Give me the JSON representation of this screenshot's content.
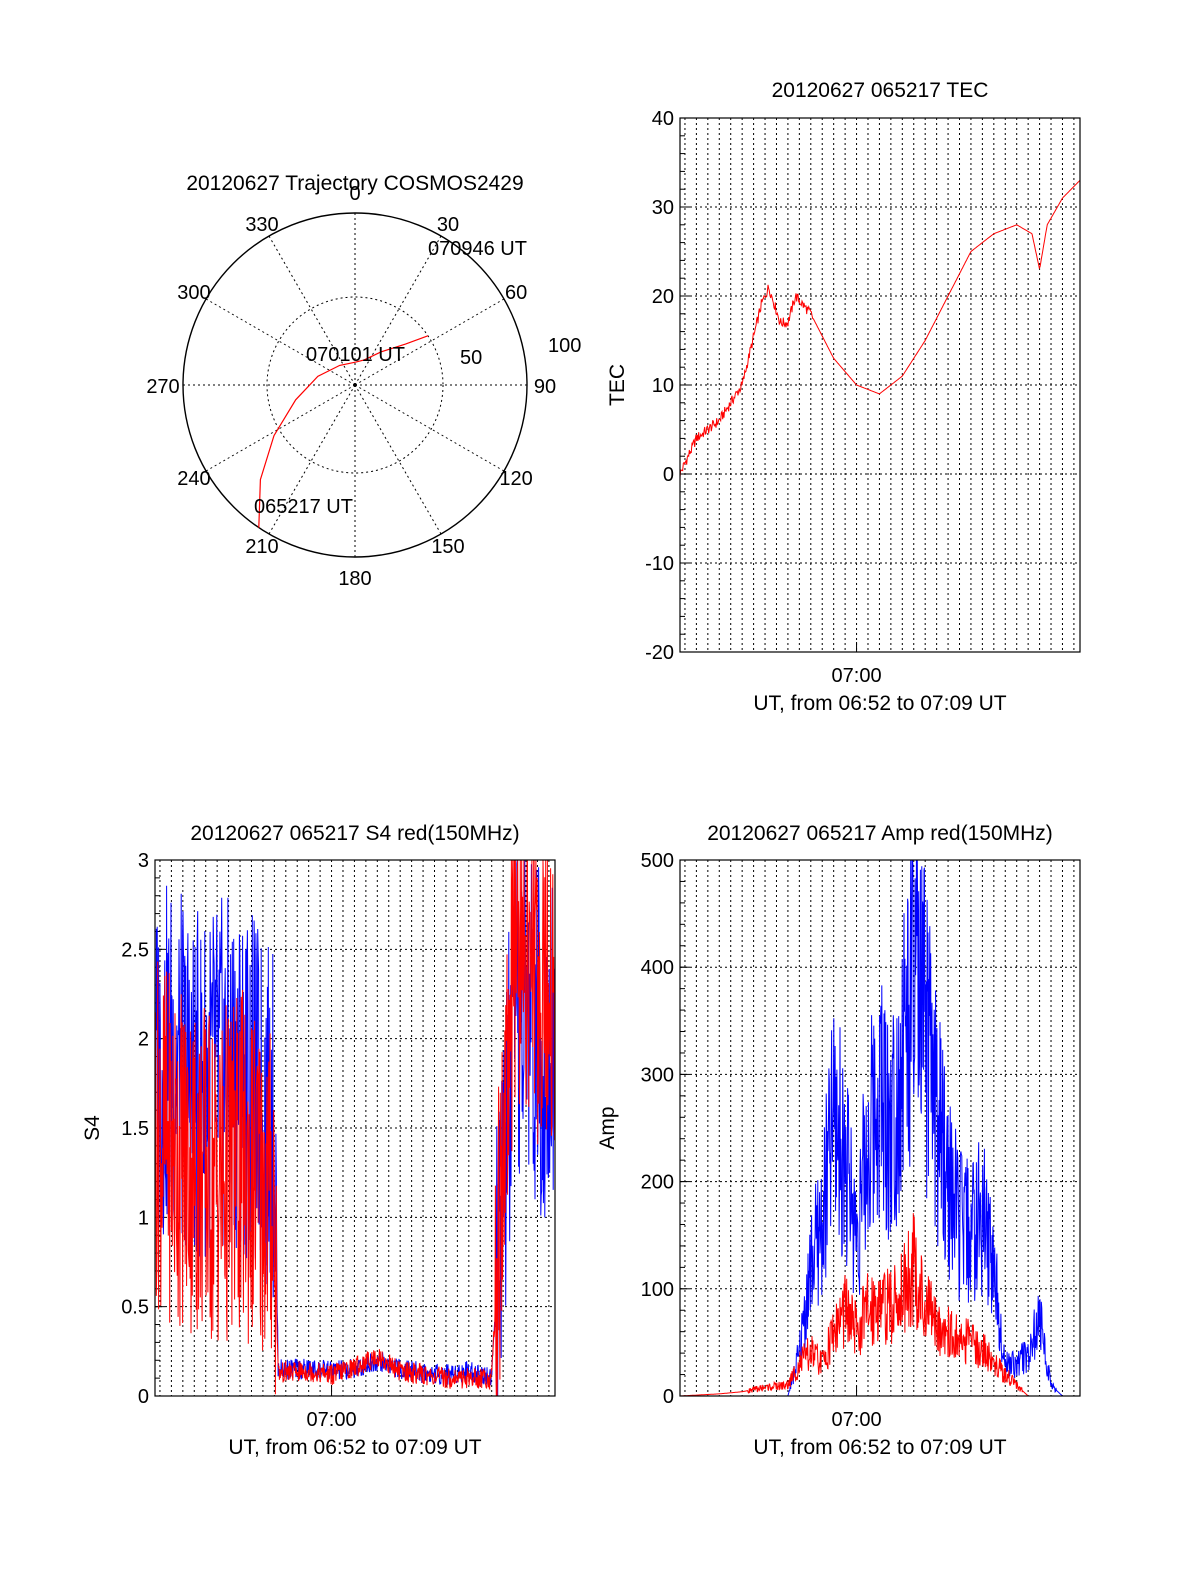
{
  "chart_data": [
    {
      "type": "polar",
      "title": "20120627 Trajectory COSMOS2429",
      "azimuth_labels": [
        "0",
        "30",
        "60",
        "90",
        "120",
        "150",
        "180",
        "210",
        "240",
        "270",
        "300",
        "330"
      ],
      "ring_labels": [
        "50",
        "100"
      ],
      "trajectory_color": "#ff0000",
      "trajectory": [
        [
          214,
          90
        ],
        [
          225,
          70
        ],
        [
          238,
          50
        ],
        [
          256,
          32
        ],
        [
          283,
          20
        ],
        [
          322,
          13
        ],
        [
          2,
          12
        ],
        [
          20,
          14
        ],
        [
          38,
          22
        ],
        [
          51,
          34
        ],
        [
          56,
          46
        ]
      ],
      "annotations": [
        "070946 UT",
        "070101 UT",
        "065217 UT"
      ]
    },
    {
      "type": "line",
      "title": "20120627 065217 TEC",
      "ylabel": "TEC",
      "xlabel": "UT, from 06:52 to 07:09 UT",
      "xticks": [
        "07:00"
      ],
      "xlim": [
        "06:52:17",
        "07:09:46"
      ],
      "ylim": [
        -20,
        40
      ],
      "yticks": [
        "-20",
        "-10",
        "0",
        "10",
        "20",
        "30",
        "40"
      ],
      "grid": true,
      "series": [
        {
          "color": "#ff0000",
          "x": [
            "06:52:17",
            "06:53:00",
            "06:54:00",
            "06:55:00",
            "06:55:50",
            "06:56:10",
            "06:56:40",
            "06:57:00",
            "06:57:20",
            "06:58:00",
            "06:59:00",
            "07:00:00",
            "07:01:00",
            "07:02:00",
            "07:03:00",
            "07:04:00",
            "07:05:00",
            "07:06:00",
            "07:07:00",
            "07:07:40",
            "07:08:00",
            "07:08:20",
            "07:09:00",
            "07:09:46"
          ],
          "values": [
            0,
            4,
            6,
            10,
            19,
            21,
            17,
            17,
            20,
            18,
            13,
            10,
            9,
            11,
            15,
            20,
            25,
            27,
            28,
            27,
            23,
            28,
            31,
            33
          ]
        }
      ]
    },
    {
      "type": "line",
      "title": "20120627 065217 S4 red(150MHz)",
      "ylabel": "S4",
      "xlabel": "UT, from 06:52 to 07:09 UT",
      "xticks": [
        "07:00"
      ],
      "xlim": [
        "06:52:17",
        "07:09:46"
      ],
      "ylim": [
        0,
        3
      ],
      "yticks": [
        "0",
        "0.5",
        "1",
        "1.5",
        "2",
        "2.5",
        "3"
      ],
      "grid": true,
      "series": [
        {
          "color": "#0000ff",
          "x": [
            "06:52:17",
            "06:53:00",
            "06:54:00",
            "06:55:00",
            "06:56:00",
            "06:57:30",
            "06:57:40",
            "06:59:00",
            "07:00:00",
            "07:01:00",
            "07:02:00",
            "07:03:00",
            "07:04:00",
            "07:05:00",
            "07:06:00",
            "07:06:30",
            "07:07:00",
            "07:07:40",
            "07:08:00",
            "07:08:30",
            "07:09:00",
            "07:09:46"
          ],
          "values": [
            1.8,
            1.9,
            1.7,
            1.8,
            1.8,
            1.5,
            0.15,
            0.15,
            0.14,
            0.15,
            0.2,
            0.15,
            0.13,
            0.12,
            0.14,
            0.12,
            0.12,
            1.5,
            2.0,
            2.2,
            2.0,
            1.9
          ]
        },
        {
          "color": "#ff0000",
          "x": [
            "06:52:17",
            "06:53:00",
            "06:54:00",
            "06:55:00",
            "06:56:00",
            "06:57:30",
            "06:57:40",
            "06:59:00",
            "07:00:00",
            "07:01:00",
            "07:02:00",
            "07:03:00",
            "07:04:00",
            "07:05:00",
            "07:06:00",
            "07:06:30",
            "07:07:00",
            "07:07:40",
            "07:08:00",
            "07:08:30",
            "07:09:00",
            "07:09:46"
          ],
          "values": [
            1.5,
            1.4,
            1.3,
            1.2,
            1.3,
            1.1,
            0.13,
            0.14,
            0.12,
            0.16,
            0.22,
            0.14,
            0.12,
            0.1,
            0.1,
            0.1,
            0.1,
            1.8,
            2.4,
            2.6,
            2.4,
            2.2
          ]
        }
      ]
    },
    {
      "type": "line",
      "title": "20120627 065217 Amp red(150MHz)",
      "ylabel": "Amp",
      "xlabel": "UT, from 06:52 to 07:09 UT",
      "xticks": [
        "07:00"
      ],
      "xlim": [
        "06:52:17",
        "07:09:46"
      ],
      "ylim": [
        0,
        500
      ],
      "yticks": [
        "0",
        "100",
        "200",
        "300",
        "400",
        "500"
      ],
      "grid": true,
      "series": [
        {
          "color": "#0000ff",
          "x": [
            "06:52:17",
            "06:55:00",
            "06:57:00",
            "06:57:30",
            "06:58:00",
            "06:58:30",
            "06:59:00",
            "06:59:30",
            "07:00:00",
            "07:00:30",
            "07:01:00",
            "07:01:30",
            "07:02:00",
            "07:02:30",
            "07:03:00",
            "07:03:30",
            "07:04:00",
            "07:04:30",
            "07:05:00",
            "07:05:30",
            "07:06:00",
            "07:06:30",
            "07:07:00",
            "07:07:30",
            "07:08:00",
            "07:08:30",
            "07:09:00",
            "07:09:46"
          ],
          "values": [
            0,
            0,
            0,
            40,
            120,
            160,
            260,
            220,
            150,
            230,
            290,
            250,
            320,
            380,
            340,
            260,
            200,
            160,
            150,
            170,
            120,
            30,
            30,
            40,
            70,
            10,
            0,
            0
          ]
        },
        {
          "color": "#ff0000",
          "x": [
            "06:52:17",
            "06:54:00",
            "06:55:00",
            "06:56:00",
            "06:57:00",
            "06:57:30",
            "06:58:00",
            "06:58:30",
            "06:59:00",
            "06:59:30",
            "07:00:00",
            "07:00:30",
            "07:01:00",
            "07:01:30",
            "07:02:00",
            "07:02:30",
            "07:03:00",
            "07:03:30",
            "07:04:00",
            "07:04:30",
            "07:05:00",
            "07:05:30",
            "07:06:00",
            "07:06:30",
            "07:07:00",
            "07:07:30",
            "07:09:46"
          ],
          "values": [
            0,
            2,
            4,
            8,
            10,
            30,
            40,
            30,
            60,
            80,
            60,
            80,
            90,
            80,
            100,
            120,
            80,
            70,
            60,
            50,
            50,
            45,
            30,
            20,
            10,
            0,
            0
          ]
        }
      ]
    }
  ]
}
